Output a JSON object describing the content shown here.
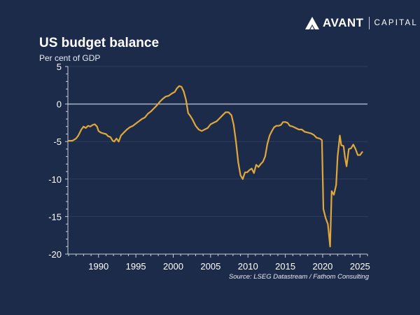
{
  "brand": {
    "name": "AVANT",
    "sub": "CAPITAL",
    "logo_icon": "avant-mountain-icon"
  },
  "colors": {
    "background": "#1c2b4a",
    "line": "#e0a83a",
    "axis": "#c9cfdb",
    "zero_line": "#aab4c8",
    "grid": "#2c3c5c"
  },
  "chart_data": {
    "type": "line",
    "title": "US budget balance",
    "subtitle": "Per cent of GDP",
    "xlabel": "",
    "ylabel": "Per cent of GDP",
    "source": "Source: LSEG Datastream / Fathom Consulting",
    "xlim": [
      1985.9,
      2026.0
    ],
    "ylim": [
      -20,
      5
    ],
    "x_ticks": [
      1990,
      1995,
      2000,
      2005,
      2010,
      2015,
      2020,
      2025
    ],
    "y_ticks": [
      5,
      0,
      -5,
      -10,
      -15,
      -20
    ],
    "grid": true,
    "legend": "none",
    "series": [
      {
        "name": "US budget balance",
        "x": [
          1986.0,
          1986.5,
          1987.0,
          1987.3,
          1987.7,
          1988.0,
          1988.3,
          1988.6,
          1988.9,
          1989.2,
          1989.5,
          1989.8,
          1990.0,
          1990.3,
          1990.6,
          1991.0,
          1991.3,
          1991.6,
          1991.9,
          1992.1,
          1992.4,
          1992.7,
          1993.0,
          1993.4,
          1993.8,
          1994.2,
          1994.6,
          1995.0,
          1995.4,
          1995.8,
          1996.2,
          1996.6,
          1997.0,
          1997.4,
          1997.8,
          1998.2,
          1998.6,
          1999.0,
          1999.4,
          1999.8,
          2000.2,
          2000.5,
          2000.8,
          2001.1,
          2001.4,
          2001.7,
          2002.0,
          2002.3,
          2002.6,
          2003.0,
          2003.4,
          2003.8,
          2004.2,
          2004.6,
          2005.0,
          2005.4,
          2005.8,
          2006.2,
          2006.6,
          2007.0,
          2007.4,
          2007.8,
          2008.1,
          2008.4,
          2008.7,
          2009.0,
          2009.3,
          2009.6,
          2009.9,
          2010.2,
          2010.5,
          2010.8,
          2011.1,
          2011.4,
          2011.7,
          2012.0,
          2012.3,
          2012.6,
          2012.9,
          2013.2,
          2013.5,
          2013.8,
          2014.1,
          2014.4,
          2014.7,
          2015.0,
          2015.3,
          2015.6,
          2016.0,
          2016.4,
          2016.8,
          2017.2,
          2017.6,
          2018.0,
          2018.4,
          2018.8,
          2019.2,
          2019.6,
          2019.9,
          2020.1,
          2020.4,
          2020.7,
          2021.0,
          2021.2,
          2021.5,
          2021.8,
          2022.0,
          2022.3,
          2022.5,
          2022.8,
          2023.0,
          2023.2,
          2023.5,
          2023.8,
          2024.1,
          2024.4,
          2024.7,
          2025.0,
          2025.3
        ],
        "y": [
          -4.9,
          -4.9,
          -4.6,
          -4.2,
          -3.4,
          -3.0,
          -3.2,
          -2.9,
          -3.0,
          -2.8,
          -2.7,
          -3.0,
          -3.6,
          -3.8,
          -3.9,
          -4.0,
          -4.3,
          -4.4,
          -4.9,
          -5.0,
          -4.6,
          -5.0,
          -4.2,
          -3.8,
          -3.4,
          -3.1,
          -2.9,
          -2.6,
          -2.3,
          -2.0,
          -1.8,
          -1.3,
          -1.0,
          -0.6,
          -0.2,
          0.3,
          0.7,
          1.0,
          1.1,
          1.4,
          1.6,
          2.1,
          2.4,
          2.3,
          1.7,
          0.6,
          -1.2,
          -1.6,
          -2.1,
          -2.9,
          -3.4,
          -3.6,
          -3.4,
          -3.2,
          -2.7,
          -2.5,
          -2.3,
          -1.9,
          -1.5,
          -1.1,
          -1.1,
          -1.5,
          -2.8,
          -5.0,
          -7.8,
          -9.5,
          -10.0,
          -9.1,
          -9.1,
          -8.8,
          -8.6,
          -9.2,
          -8.1,
          -8.4,
          -8.0,
          -7.7,
          -7.0,
          -5.3,
          -4.2,
          -3.6,
          -3.1,
          -2.9,
          -2.9,
          -2.8,
          -2.4,
          -2.4,
          -2.5,
          -2.9,
          -3.0,
          -3.2,
          -3.4,
          -3.4,
          -3.7,
          -3.8,
          -3.9,
          -4.1,
          -4.5,
          -4.6,
          -4.8,
          -14.0,
          -15.2,
          -16.0,
          -19.0,
          -11.6,
          -12.1,
          -10.8,
          -7.0,
          -4.2,
          -5.5,
          -5.6,
          -7.2,
          -8.3,
          -6.0,
          -5.9,
          -5.4,
          -6.0,
          -6.8,
          -6.8,
          -6.4
        ]
      }
    ]
  }
}
